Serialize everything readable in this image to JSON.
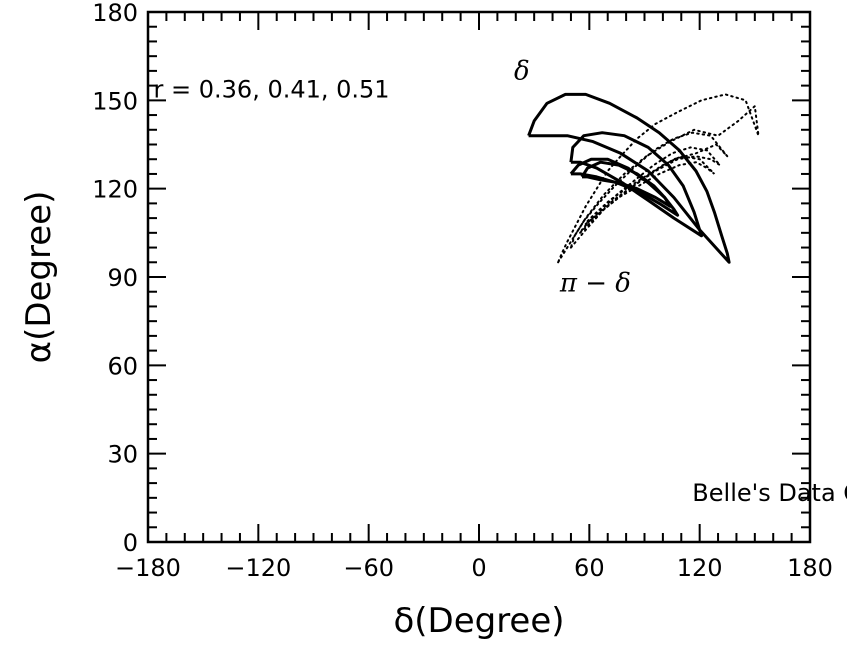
{
  "chart_data": {
    "type": "line",
    "title": "",
    "xlabel": "δ(Degree)",
    "ylabel": "α(Degree)",
    "xlim": [
      -180,
      180
    ],
    "ylim": [
      0,
      180
    ],
    "x_ticks": [
      -180,
      -120,
      -60,
      0,
      60,
      120,
      180
    ],
    "y_ticks": [
      0,
      30,
      60,
      90,
      120,
      150,
      180
    ],
    "x_tick_labels": [
      "−180",
      "−120",
      "−60",
      "0",
      "60",
      "120",
      "180"
    ],
    "y_tick_labels": [
      "0",
      "30",
      "60",
      "90",
      "120",
      "150",
      "180"
    ],
    "grid": false,
    "legend": "none",
    "annotations": [
      {
        "text": "r = 0.36, 0.41, 0.51",
        "x": -177,
        "y": 151
      },
      {
        "text": "δ",
        "x": 19,
        "y": 157
      },
      {
        "text": "π − δ",
        "x": 44,
        "y": 85
      },
      {
        "text": "Belle's Data Only",
        "x": 116,
        "y": 14
      }
    ],
    "series": [
      {
        "style": "solid",
        "x": [
          27,
          30,
          37,
          47,
          58,
          71,
          86,
          98,
          109,
          118,
          124,
          128,
          132,
          135,
          136,
          120,
          106,
          92,
          77,
          62,
          48,
          38,
          29,
          27
        ],
        "y": [
          138,
          143,
          149,
          152,
          152,
          149,
          144,
          139,
          133,
          126,
          119,
          112,
          104,
          98,
          95,
          106,
          117,
          126,
          132,
          136,
          138,
          138,
          138,
          138
        ]
      },
      {
        "style": "solid",
        "x": [
          50,
          51,
          57,
          67,
          79,
          92,
          103,
          111,
          117,
          121,
          106,
          92,
          78,
          64,
          55,
          50
        ],
        "y": [
          129,
          134,
          138,
          139,
          138,
          134,
          128,
          121,
          112,
          104,
          110,
          116,
          122,
          127,
          129,
          129
        ]
      },
      {
        "style": "solid",
        "x": [
          50,
          54,
          61,
          70,
          81,
          92,
          101,
          106,
          108,
          98,
          87,
          75,
          64,
          55,
          50
        ],
        "y": [
          125,
          128,
          130,
          130,
          127,
          122,
          117,
          113,
          111,
          115,
          119,
          122,
          124,
          125,
          125
        ]
      },
      {
        "style": "solid",
        "x": [
          56,
          59,
          66,
          76,
          86,
          95,
          101,
          104,
          96,
          86,
          76,
          66,
          59,
          56
        ],
        "y": [
          124,
          127,
          129,
          128,
          125,
          121,
          117,
          114,
          117,
          120,
          122,
          123,
          124,
          124
        ]
      },
      {
        "style": "dotted",
        "x": [
          43,
          49,
          58,
          68,
          79,
          91,
          104,
          117,
          130,
          141,
          150,
          152,
          145,
          134,
          121,
          108,
          96,
          86,
          77,
          70,
          64,
          58,
          53,
          48,
          45,
          43
        ],
        "y": [
          95,
          101,
          110,
          118,
          125,
          131,
          136,
          140,
          138,
          143,
          148,
          138,
          150,
          152,
          150,
          146,
          142,
          137,
          131,
          126,
          120,
          114,
          108,
          102,
          98,
          95
        ]
      },
      {
        "style": "dotted",
        "x": [
          50,
          58,
          68,
          80,
          93,
          106,
          118,
          129,
          135,
          126,
          116,
          106,
          95,
          84,
          74,
          65,
          57,
          52,
          50
        ],
        "y": [
          100,
          106,
          113,
          119,
          125,
          130,
          132,
          135,
          131,
          138,
          139,
          137,
          133,
          127,
          121,
          115,
          109,
          104,
          100
        ]
      },
      {
        "style": "dotted",
        "x": [
          55,
          63,
          73,
          84,
          96,
          108,
          118,
          126,
          131,
          124,
          115,
          105,
          95,
          85,
          75,
          67,
          60,
          56,
          55
        ],
        "y": [
          105,
          110,
          116,
          121,
          126,
          130,
          131,
          130,
          128,
          133,
          134,
          132,
          128,
          123,
          118,
          113,
          109,
          106,
          105
        ]
      },
      {
        "style": "dotted",
        "x": [
          58,
          66,
          76,
          87,
          98,
          109,
          118,
          124,
          128,
          120,
          110,
          100,
          90,
          80,
          71,
          64,
          59,
          58
        ],
        "y": [
          108,
          112,
          117,
          121,
          125,
          128,
          129,
          127,
          125,
          130,
          131,
          128,
          124,
          120,
          116,
          112,
          109,
          108
        ]
      }
    ]
  }
}
